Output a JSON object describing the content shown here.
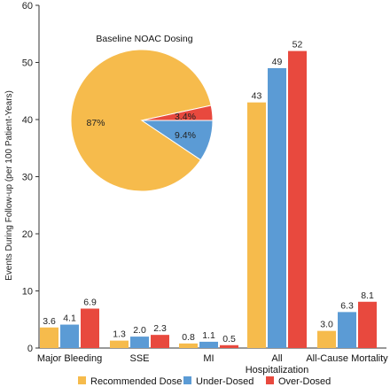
{
  "chart_data": {
    "type": "bar",
    "ylabel": "Events During Follow-up (per 100 Patient-Years)",
    "ylim": [
      0,
      60
    ],
    "yticks": [
      0,
      10,
      20,
      30,
      40,
      50,
      60
    ],
    "categories": [
      {
        "lines": [
          "Major Bleeding"
        ]
      },
      {
        "lines": [
          "SSE"
        ]
      },
      {
        "lines": [
          "MI"
        ]
      },
      {
        "lines": [
          "All",
          "Hospitalization"
        ]
      },
      {
        "lines": [
          "All-Cause Mortality"
        ]
      }
    ],
    "series": [
      {
        "name": "Recommended Dose",
        "color": "#F6BB4C",
        "values": [
          3.6,
          1.3,
          0.8,
          43,
          3.0
        ],
        "labels": [
          "3.6",
          "1.3",
          "0.8",
          "43",
          "3.0"
        ]
      },
      {
        "name": "Under-Dosed",
        "color": "#5B9BD5",
        "values": [
          4.1,
          2.0,
          1.1,
          49,
          6.3
        ],
        "labels": [
          "4.1",
          "2.0",
          "1.1",
          "49",
          "6.3"
        ]
      },
      {
        "name": "Over-Dosed",
        "color": "#E8493E",
        "values": [
          6.9,
          2.3,
          0.5,
          52,
          8.1
        ],
        "labels": [
          "6.9",
          "2.3",
          "0.5",
          "52",
          "8.1"
        ]
      }
    ],
    "legend_position": "bottom",
    "inset_pie": {
      "title": "Baseline NOAC Dosing",
      "slices": [
        {
          "name": "Recommended Dose",
          "label": "87%",
          "value": 87.2,
          "color": "#F6BB4C"
        },
        {
          "name": "Under-Dosed",
          "label": "9.4%",
          "value": 9.4,
          "color": "#5B9BD5"
        },
        {
          "name": "Over-Dosed",
          "label": "3.4%",
          "value": 3.4,
          "color": "#E8493E"
        }
      ]
    }
  }
}
